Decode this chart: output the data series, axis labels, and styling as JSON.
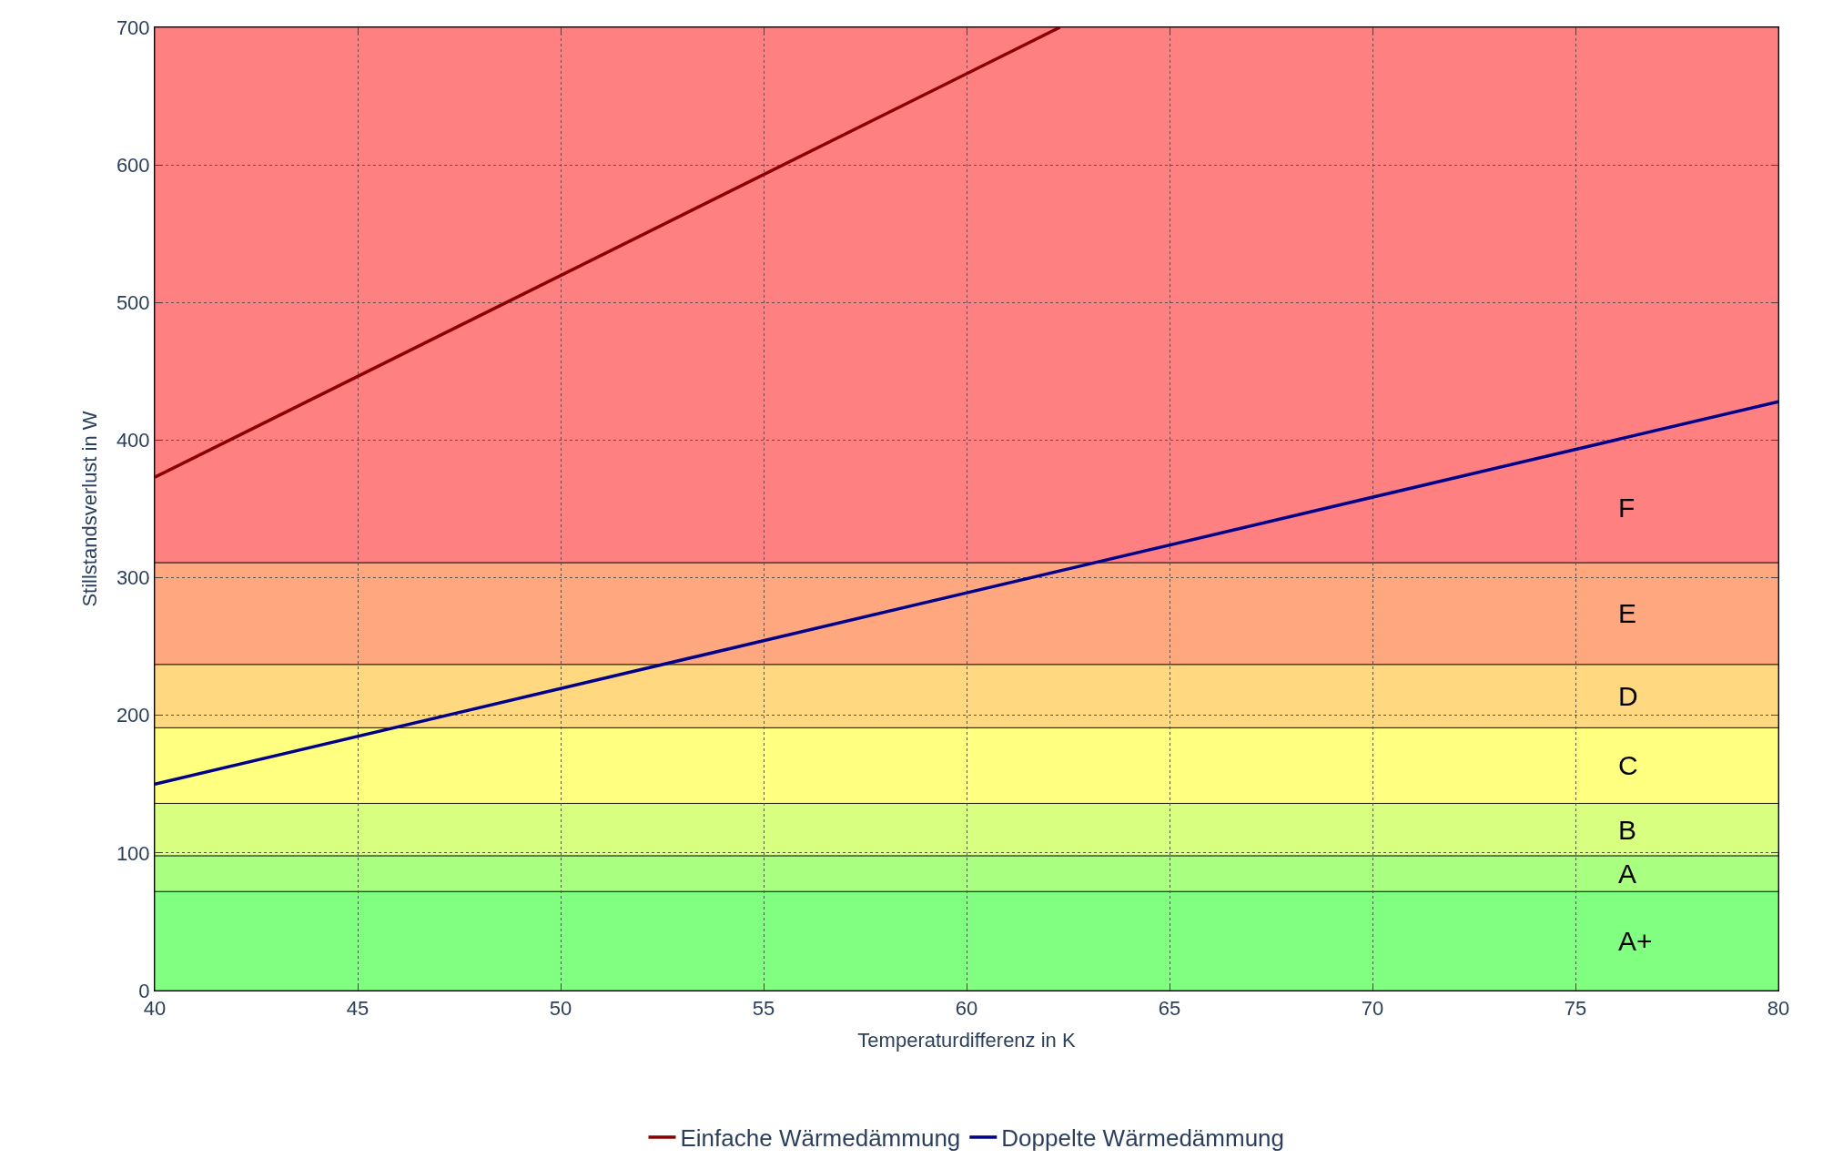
{
  "chart_data": {
    "type": "line",
    "xlabel": "Temperaturdifferenz in K",
    "ylabel": "Stillstandsverlust in W",
    "xlim": [
      40,
      80
    ],
    "ylim": [
      0,
      700
    ],
    "xticks": [
      40,
      45,
      50,
      55,
      60,
      65,
      70,
      75,
      80
    ],
    "yticks": [
      0,
      100,
      200,
      300,
      400,
      500,
      600,
      700
    ],
    "grid": true,
    "legend": "bottom",
    "line_style": "solid",
    "series": [
      {
        "name": "Einfache Wärmedämmung",
        "color": "#8b0000",
        "x": [
          40,
          62.3
        ],
        "values": [
          373,
          700
        ]
      },
      {
        "name": "Doppelte Wärmedämmung",
        "color": "#00008b",
        "x": [
          40,
          80
        ],
        "values": [
          150,
          428
        ]
      }
    ],
    "bands": [
      {
        "axis": "y",
        "from": 0,
        "to": 72,
        "label": "A+",
        "color": "#80ff80"
      },
      {
        "axis": "y",
        "from": 72,
        "to": 98,
        "label": "A",
        "color": "#a8ff80"
      },
      {
        "axis": "y",
        "from": 98,
        "to": 136,
        "label": "B",
        "color": "#d8ff80"
      },
      {
        "axis": "y",
        "from": 136,
        "to": 191,
        "label": "C",
        "color": "#ffff80"
      },
      {
        "axis": "y",
        "from": 191,
        "to": 237,
        "label": "D",
        "color": "#ffd880"
      },
      {
        "axis": "y",
        "from": 237,
        "to": 311,
        "label": "E",
        "color": "#ffa880"
      },
      {
        "axis": "y",
        "from": 311,
        "to": 700,
        "label": "F",
        "color": "#ff8080"
      }
    ]
  }
}
